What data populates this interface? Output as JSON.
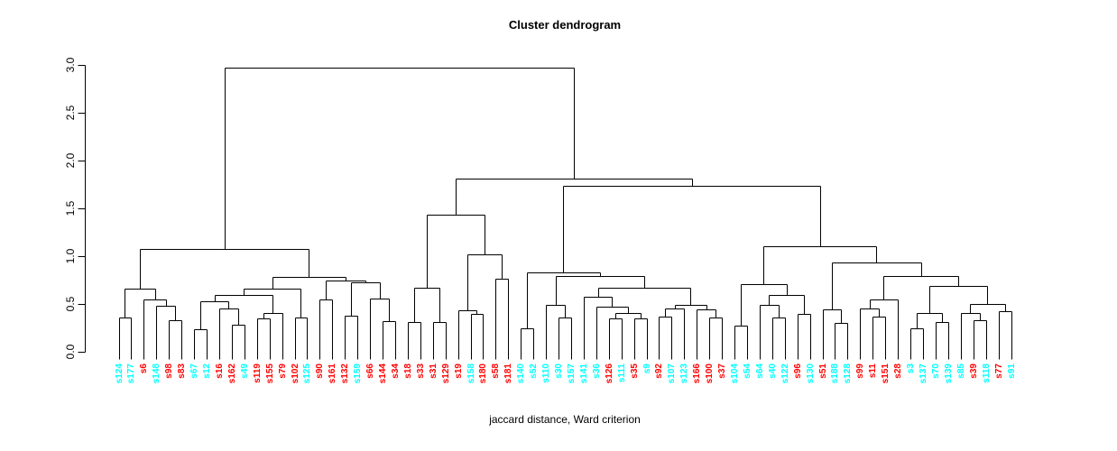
{
  "title": "Cluster dendrogram",
  "xlabel": "jaccard distance, Ward criterion",
  "chart_data": {
    "type": "dendrogram",
    "ylabel_ticks": [
      "0.0",
      "0.5",
      "1.0",
      "1.5",
      "2.0",
      "2.5",
      "3.0"
    ],
    "ylim": [
      0.0,
      3.0
    ],
    "grid": false,
    "line_color": "#000000",
    "leaf_colors": {
      "red": "#FF0000",
      "cyan": "#00FFFF"
    },
    "leaves": [
      {
        "label": "s124",
        "color": "cyan"
      },
      {
        "label": "s177",
        "color": "cyan"
      },
      {
        "label": "s6",
        "color": "red"
      },
      {
        "label": "s148",
        "color": "cyan"
      },
      {
        "label": "s98",
        "color": "red"
      },
      {
        "label": "s83",
        "color": "red"
      },
      {
        "label": "s67",
        "color": "cyan"
      },
      {
        "label": "s12",
        "color": "cyan"
      },
      {
        "label": "s16",
        "color": "red"
      },
      {
        "label": "s162",
        "color": "red"
      },
      {
        "label": "s49",
        "color": "cyan"
      },
      {
        "label": "s119",
        "color": "red"
      },
      {
        "label": "s155",
        "color": "red"
      },
      {
        "label": "s79",
        "color": "red"
      },
      {
        "label": "s102",
        "color": "red"
      },
      {
        "label": "s125",
        "color": "cyan"
      },
      {
        "label": "s90",
        "color": "red"
      },
      {
        "label": "s161",
        "color": "red"
      },
      {
        "label": "s132",
        "color": "red"
      },
      {
        "label": "s159",
        "color": "cyan"
      },
      {
        "label": "s66",
        "color": "red"
      },
      {
        "label": "s144",
        "color": "red"
      },
      {
        "label": "s34",
        "color": "red"
      },
      {
        "label": "s18",
        "color": "red"
      },
      {
        "label": "s33",
        "color": "red"
      },
      {
        "label": "s31",
        "color": "red"
      },
      {
        "label": "s129",
        "color": "red"
      },
      {
        "label": "s19",
        "color": "red"
      },
      {
        "label": "s158",
        "color": "cyan"
      },
      {
        "label": "s180",
        "color": "red"
      },
      {
        "label": "s58",
        "color": "red"
      },
      {
        "label": "s181",
        "color": "red"
      },
      {
        "label": "s140",
        "color": "cyan"
      },
      {
        "label": "s52",
        "color": "cyan"
      },
      {
        "label": "s110",
        "color": "cyan"
      },
      {
        "label": "s30",
        "color": "cyan"
      },
      {
        "label": "s157",
        "color": "cyan"
      },
      {
        "label": "s141",
        "color": "cyan"
      },
      {
        "label": "s36",
        "color": "cyan"
      },
      {
        "label": "s126",
        "color": "red"
      },
      {
        "label": "s111",
        "color": "cyan"
      },
      {
        "label": "s35",
        "color": "red"
      },
      {
        "label": "s9",
        "color": "cyan"
      },
      {
        "label": "s92",
        "color": "red"
      },
      {
        "label": "s107",
        "color": "cyan"
      },
      {
        "label": "s123",
        "color": "cyan"
      },
      {
        "label": "s166",
        "color": "red"
      },
      {
        "label": "s100",
        "color": "red"
      },
      {
        "label": "s37",
        "color": "red"
      },
      {
        "label": "s104",
        "color": "cyan"
      },
      {
        "label": "s54",
        "color": "cyan"
      },
      {
        "label": "s64",
        "color": "cyan"
      },
      {
        "label": "s40",
        "color": "cyan"
      },
      {
        "label": "s122",
        "color": "cyan"
      },
      {
        "label": "s96",
        "color": "red"
      },
      {
        "label": "s130",
        "color": "cyan"
      },
      {
        "label": "s51",
        "color": "red"
      },
      {
        "label": "s188",
        "color": "cyan"
      },
      {
        "label": "s128",
        "color": "cyan"
      },
      {
        "label": "s99",
        "color": "red"
      },
      {
        "label": "s11",
        "color": "red"
      },
      {
        "label": "s151",
        "color": "red"
      },
      {
        "label": "s28",
        "color": "red"
      },
      {
        "label": "s3",
        "color": "cyan"
      },
      {
        "label": "s137",
        "color": "cyan"
      },
      {
        "label": "s70",
        "color": "cyan"
      },
      {
        "label": "s139",
        "color": "cyan"
      },
      {
        "label": "s85",
        "color": "cyan"
      },
      {
        "label": "s39",
        "color": "red"
      },
      {
        "label": "s118",
        "color": "cyan"
      },
      {
        "label": "s77",
        "color": "red"
      },
      {
        "label": "s91",
        "color": "cyan"
      }
    ],
    "tree": {
      "h": 2.97,
      "c": [
        {
          "h": 1.08,
          "c": [
            {
              "h": 0.66,
              "c": [
                {
                  "h": 0.36,
                  "c": [
                    0,
                    1
                  ]
                },
                {
                  "h": 0.55,
                  "c": [
                    2,
                    {
                      "h": 0.48,
                      "c": [
                        3,
                        {
                          "h": 0.33,
                          "c": [
                            4,
                            5
                          ]
                        }
                      ]
                    }
                  ]
                }
              ]
            },
            {
              "h": 0.78,
              "c": [
                {
                  "h": 0.66,
                  "c": [
                    {
                      "h": 0.59,
                      "c": [
                        {
                          "h": 0.53,
                          "c": [
                            {
                              "h": 0.24,
                              "c": [
                                6,
                                7
                              ]
                            },
                            {
                              "h": 0.45,
                              "c": [
                                8,
                                {
                                  "h": 0.28,
                                  "c": [
                                    9,
                                    10
                                  ]
                                }
                              ]
                            }
                          ]
                        },
                        {
                          "h": 0.41,
                          "c": [
                            {
                              "h": 0.35,
                              "c": [
                                11,
                                12
                              ]
                            },
                            13
                          ]
                        }
                      ]
                    },
                    {
                      "h": 0.36,
                      "c": [
                        14,
                        15
                      ]
                    }
                  ]
                },
                {
                  "h": 0.75,
                  "c": [
                    {
                      "h": 0.55,
                      "c": [
                        16,
                        17
                      ]
                    },
                    {
                      "h": 0.73,
                      "c": [
                        {
                          "h": 0.38,
                          "c": [
                            18,
                            19
                          ]
                        },
                        {
                          "h": 0.56,
                          "c": [
                            20,
                            {
                              "h": 0.32,
                              "c": [
                                21,
                                22
                              ]
                            }
                          ]
                        }
                      ]
                    }
                  ]
                }
              ]
            }
          ]
        },
        {
          "h": 1.81,
          "c": [
            {
              "h": 1.43,
              "c": [
                {
                  "h": 0.67,
                  "c": [
                    {
                      "h": 0.31,
                      "c": [
                        23,
                        24
                      ]
                    },
                    {
                      "h": 0.31,
                      "c": [
                        25,
                        26
                      ]
                    }
                  ]
                },
                {
                  "h": 1.02,
                  "c": [
                    {
                      "h": 0.43,
                      "c": [
                        27,
                        {
                          "h": 0.4,
                          "c": [
                            28,
                            29
                          ]
                        }
                      ]
                    },
                    {
                      "h": 0.76,
                      "c": [
                        30,
                        31
                      ]
                    }
                  ]
                }
              ]
            },
            {
              "h": 1.74,
              "c": [
                {
                  "h": 0.83,
                  "c": [
                    {
                      "h": 0.25,
                      "c": [
                        32,
                        33
                      ]
                    },
                    {
                      "h": 0.79,
                      "c": [
                        {
                          "h": 0.49,
                          "c": [
                            34,
                            {
                              "h": 0.36,
                              "c": [
                                35,
                                36
                              ]
                            }
                          ]
                        },
                        {
                          "h": 0.67,
                          "c": [
                            {
                              "h": 0.58,
                              "c": [
                                37,
                                {
                                  "h": 0.47,
                                  "c": [
                                    38,
                                    {
                                      "h": 0.41,
                                      "c": [
                                        {
                                          "h": 0.35,
                                          "c": [
                                            39,
                                            40
                                          ]
                                        },
                                        {
                                          "h": 0.35,
                                          "c": [
                                            41,
                                            42
                                          ]
                                        }
                                      ]
                                    }
                                  ]
                                }
                              ]
                            },
                            {
                              "h": 0.49,
                              "c": [
                                {
                                  "h": 0.45,
                                  "c": [
                                    {
                                      "h": 0.37,
                                      "c": [
                                        43,
                                        44
                                      ]
                                    },
                                    45
                                  ]
                                },
                                {
                                  "h": 0.44,
                                  "c": [
                                    46,
                                    {
                                      "h": 0.36,
                                      "c": [
                                        47,
                                        48
                                      ]
                                    }
                                  ]
                                }
                              ]
                            }
                          ]
                        }
                      ]
                    }
                  ]
                },
                {
                  "h": 1.1,
                  "c": [
                    {
                      "h": 0.71,
                      "c": [
                        {
                          "h": 0.27,
                          "c": [
                            49,
                            50
                          ]
                        },
                        {
                          "h": 0.59,
                          "c": [
                            {
                              "h": 0.49,
                              "c": [
                                51,
                                {
                                  "h": 0.36,
                                  "c": [
                                    52,
                                    53
                                  ]
                                }
                              ]
                            },
                            {
                              "h": 0.4,
                              "c": [
                                54,
                                55
                              ]
                            }
                          ]
                        }
                      ]
                    },
                    {
                      "h": 0.93,
                      "c": [
                        {
                          "h": 0.44,
                          "c": [
                            56,
                            {
                              "h": 0.3,
                              "c": [
                                57,
                                58
                              ]
                            }
                          ]
                        },
                        {
                          "h": 0.79,
                          "c": [
                            {
                              "h": 0.55,
                              "c": [
                                {
                                  "h": 0.45,
                                  "c": [
                                    59,
                                    {
                                      "h": 0.37,
                                      "c": [
                                        60,
                                        61
                                      ]
                                    }
                                  ]
                                },
                                62
                              ]
                            },
                            {
                              "h": 0.69,
                              "c": [
                                {
                                  "h": 0.41,
                                  "c": [
                                    {
                                      "h": 0.25,
                                      "c": [
                                        63,
                                        64
                                      ]
                                    },
                                    {
                                      "h": 0.31,
                                      "c": [
                                        65,
                                        66
                                      ]
                                    }
                                  ]
                                },
                                {
                                  "h": 0.5,
                                  "c": [
                                    {
                                      "h": 0.41,
                                      "c": [
                                        67,
                                        {
                                          "h": 0.33,
                                          "c": [
                                            68,
                                            69
                                          ]
                                        }
                                      ]
                                    },
                                    {
                                      "h": 0.42,
                                      "c": [
                                        70,
                                        71
                                      ]
                                    }
                                  ]
                                }
                              ]
                            }
                          ]
                        }
                      ]
                    }
                  ]
                }
              ]
            }
          ]
        }
      ]
    }
  }
}
